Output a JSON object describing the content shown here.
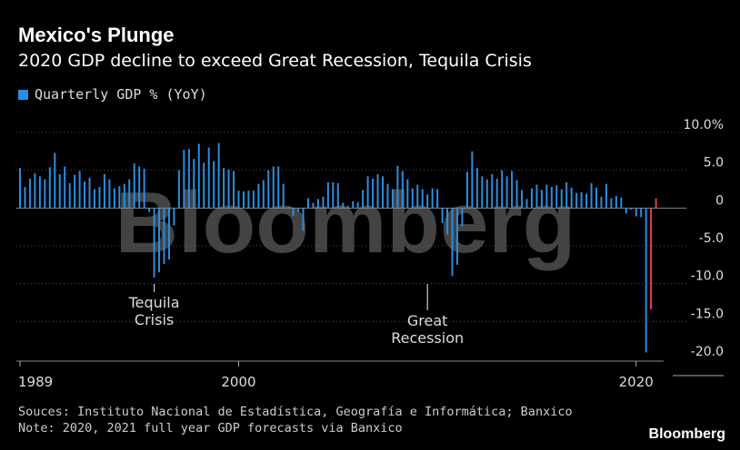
{
  "header": {
    "title": "Mexico's Plunge",
    "subtitle": "2020 GDP decline to exceed Great Recession, Tequila Crisis"
  },
  "legend": {
    "label": "Quarterly GDP % (YoY)"
  },
  "footer": {
    "source": "Souces: Instituto Nacional de Estadística, Geografía e Informática; Banxico",
    "note": "Note: 2020, 2021 full year GDP forecasts via Banxico",
    "logo": "Bloomberg"
  },
  "watermark": "Bloomberg",
  "colors": {
    "bar": "#2b8de0",
    "forecast": "#e0404a",
    "grid": "#555555",
    "text": "#dddddd"
  },
  "chart_data": {
    "type": "bar",
    "ylim": [
      -20,
      10
    ],
    "ytick_labels": [
      "10.0%",
      "5.0",
      "0",
      "-5.0",
      "-10.0",
      "-15.0",
      "-20.0"
    ],
    "yticks": [
      10,
      5,
      0,
      -5,
      -10,
      -15,
      -20
    ],
    "xtick_labels": [
      "1989",
      "2000",
      "2020"
    ],
    "xticks": [
      1989,
      2000,
      2020
    ],
    "annotations": [
      {
        "text": [
          "Tequila",
          "Crisis"
        ],
        "x": 1995.75
      },
      {
        "text": [
          "Great",
          "Recession"
        ],
        "x": 2009.5
      }
    ],
    "series": [
      {
        "name": "Quarterly GDP % (YoY)",
        "x_start": 1989.0,
        "x_step": 0.25,
        "values": [
          5.3,
          2.8,
          3.9,
          4.6,
          4.2,
          3.8,
          5.4,
          7.3,
          4.5,
          5.5,
          3.3,
          4.4,
          4.9,
          3.5,
          4.0,
          2.5,
          2.8,
          4.5,
          3.8,
          2.6,
          2.9,
          3.2,
          3.8,
          5.9,
          5.5,
          5.2,
          -0.5,
          -9.2,
          -8.5,
          -7.4,
          -6.8,
          -2.3,
          5.0,
          7.7,
          7.8,
          6.5,
          8.5,
          6.0,
          8.0,
          6.2,
          8.6,
          5.3,
          5.1,
          4.9,
          2.3,
          2.2,
          2.3,
          2.3,
          3.2,
          3.7,
          5.0,
          5.5,
          5.5,
          3.2,
          0.2,
          -1.0,
          -0.5,
          -3.0,
          1.3,
          0.7,
          1.2,
          1.5,
          3.4,
          3.4,
          3.3,
          0.7,
          0.3,
          0.9,
          0.8,
          2.4,
          4.2,
          3.9,
          4.5,
          4.2,
          3.2,
          2.5,
          5.6,
          4.9,
          3.8,
          2.6,
          3.1,
          2.5,
          1.8,
          2.6,
          2.5,
          -2.0,
          -3.5,
          -9.0,
          -7.5,
          -2.4,
          4.8,
          7.5,
          5.3,
          4.2,
          3.8,
          4.5,
          3.9,
          5.0,
          4.2,
          4.9,
          3.7,
          2.4,
          1.2,
          2.6,
          3.1,
          2.4,
          3.1,
          2.8,
          3.0,
          2.5,
          3.4,
          2.7,
          2.0,
          2.1,
          1.9,
          3.3,
          2.7,
          1.5,
          3.2,
          1.3,
          1.6,
          1.4,
          -0.7,
          -0.2,
          -1.1,
          -1.2,
          -19.1
        ]
      },
      {
        "name": "Full year forecast",
        "x": [
          2020.75
        ],
        "values": [
          -13.4
        ]
      },
      {
        "name": "Full year forecast",
        "x": [
          2021.0
        ],
        "values": [
          1.3
        ]
      }
    ]
  }
}
